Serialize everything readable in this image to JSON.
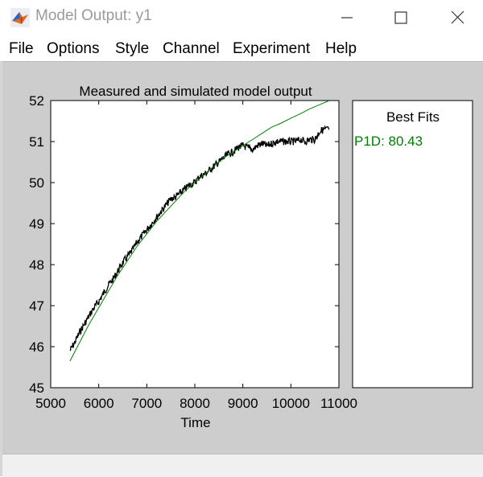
{
  "window": {
    "title": "Model Output: y1",
    "icon": "matlab-membrane-icon"
  },
  "menu": [
    "File",
    "Options",
    "Style",
    "Channel",
    "Experiment",
    "Help"
  ],
  "fits_panel": {
    "title": "Best Fits",
    "entries": [
      {
        "label": "P1D: 80.43",
        "color": "#008000"
      }
    ]
  },
  "chart_data": {
    "type": "line",
    "title": "Measured and simulated model output",
    "xlabel": "Time",
    "ylabel": "",
    "xlim": [
      5000,
      11000
    ],
    "ylim": [
      45,
      52
    ],
    "xticks": [
      5000,
      6000,
      7000,
      8000,
      9000,
      10000,
      11000
    ],
    "yticks": [
      45,
      46,
      47,
      48,
      49,
      50,
      51,
      52
    ],
    "grid": false,
    "series": [
      {
        "color": "#000000",
        "style": "measured-noisy",
        "x": [
          5400,
          5500,
          5600,
          5700,
          5800,
          5900,
          6000,
          6100,
          6200,
          6300,
          6400,
          6500,
          6600,
          6700,
          6800,
          6900,
          7000,
          7100,
          7200,
          7300,
          7400,
          7500,
          7600,
          7700,
          7800,
          7900,
          8000,
          8100,
          8200,
          8300,
          8400,
          8500,
          8600,
          8700,
          8800,
          8900,
          9000,
          9100,
          9200,
          9300,
          9400,
          9500,
          9600,
          9700,
          9800,
          9900,
          10000,
          10100,
          10200,
          10300,
          10400,
          10500,
          10600,
          10700,
          10800
        ],
        "y": [
          45.9,
          46.1,
          46.35,
          46.55,
          46.75,
          46.95,
          47.1,
          47.3,
          47.5,
          47.65,
          47.85,
          48.05,
          48.2,
          48.35,
          48.55,
          48.7,
          48.85,
          49.0,
          49.15,
          49.3,
          49.45,
          49.6,
          49.65,
          49.75,
          49.85,
          49.95,
          50.0,
          50.15,
          50.2,
          50.3,
          50.4,
          50.5,
          50.6,
          50.7,
          50.75,
          50.85,
          50.9,
          50.85,
          50.8,
          50.9,
          50.95,
          50.9,
          50.95,
          51.0,
          51.0,
          51.0,
          51.0,
          51.0,
          51.05,
          51.0,
          51.05,
          51.05,
          51.25,
          51.3,
          51.3
        ]
      },
      {
        "color": "#008000",
        "style": "simulated",
        "x": [
          5400,
          5600,
          5800,
          6000,
          6200,
          6400,
          6600,
          6800,
          7000,
          7200,
          7400,
          7600,
          7800,
          8000,
          8200,
          8400,
          8600,
          8800,
          9000,
          9200,
          9400,
          9600,
          9800,
          10000,
          10200,
          10400,
          10600,
          10800
        ],
        "y": [
          45.65,
          46.1,
          46.55,
          46.95,
          47.35,
          47.75,
          48.1,
          48.45,
          48.75,
          49.05,
          49.3,
          49.55,
          49.8,
          50.0,
          50.2,
          50.4,
          50.6,
          50.75,
          50.9,
          51.05,
          51.2,
          51.35,
          51.45,
          51.57,
          51.68,
          51.8,
          51.9,
          52.0
        ]
      }
    ]
  }
}
